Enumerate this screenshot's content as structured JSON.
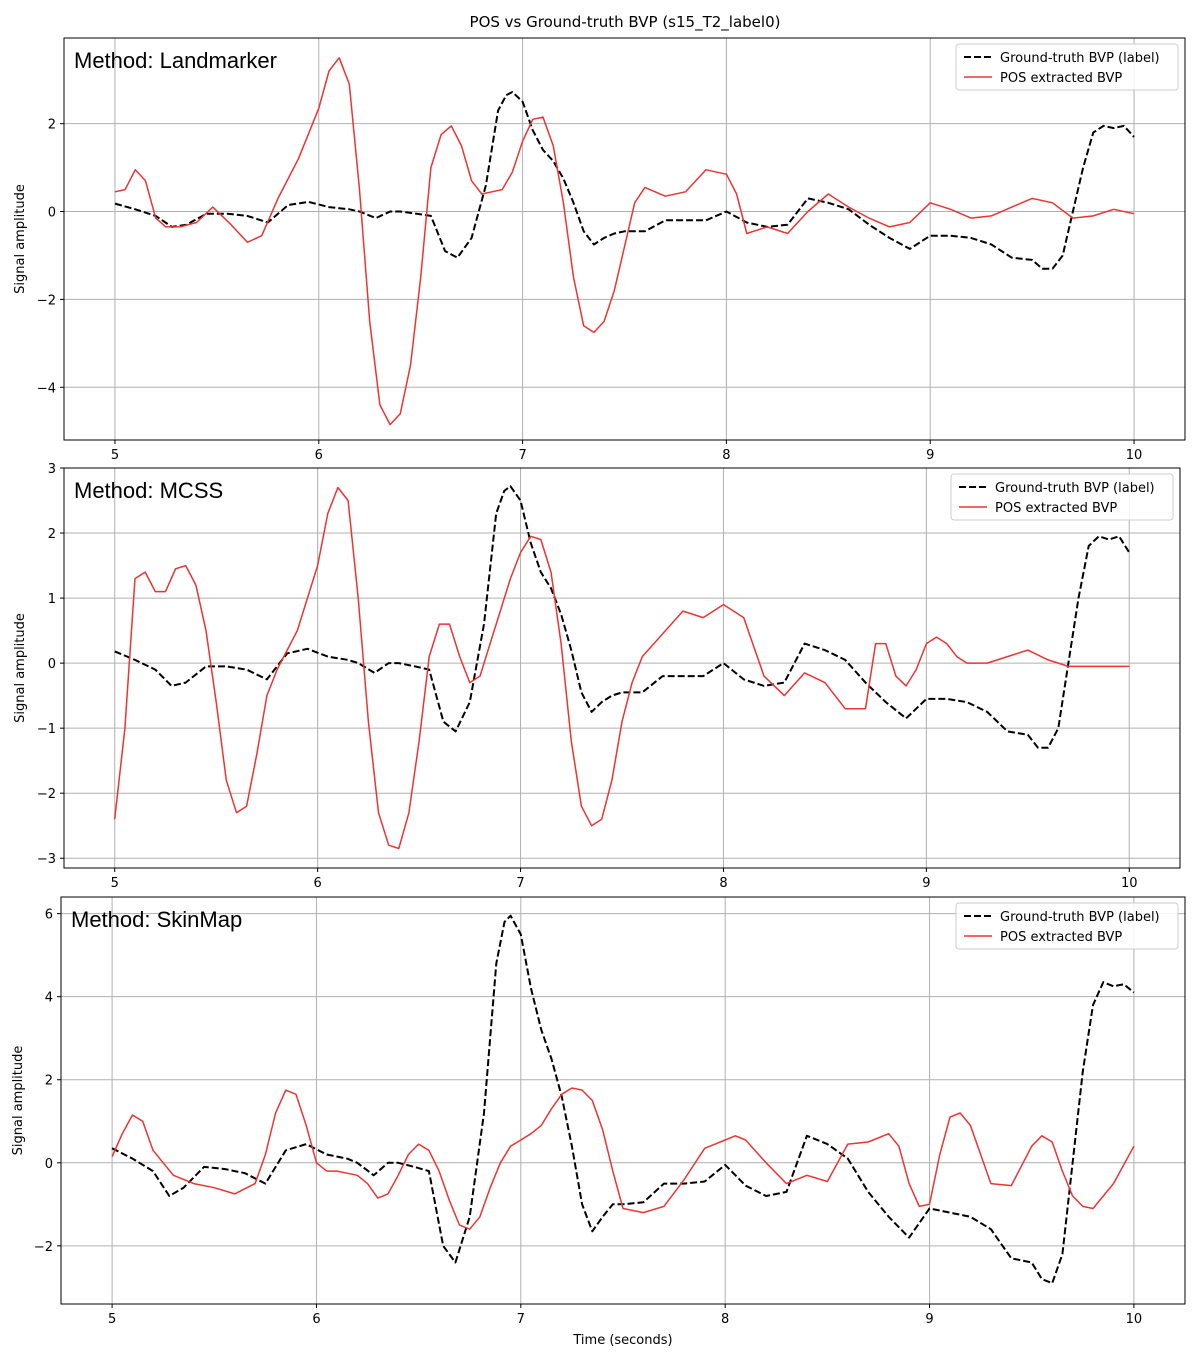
{
  "figure": {
    "title": "POS vs Ground-truth BVP (s15_T2_label0)"
  },
  "legend": {
    "gt_label": "Ground-truth BVP (label)",
    "pos_label": "POS extracted BVP",
    "gt_color": "#000000",
    "pos_color": "#ee3333"
  },
  "chart_data": [
    {
      "type": "line",
      "panel_label": "Method: Landmarker",
      "xlabel": "",
      "ylabel": "Signal amplitude",
      "xlim": [
        4.75,
        10.25
      ],
      "ylim": [
        -5.2,
        3.95
      ],
      "xticks": [
        5,
        6,
        7,
        8,
        9,
        10
      ],
      "yticks": [
        -4,
        -2,
        0,
        2
      ],
      "grid": true,
      "legend_position": "top-right",
      "series": [
        {
          "name": "Ground-truth BVP (label)",
          "style": "dashed",
          "x": [
            5.0,
            5.1,
            5.2,
            5.28,
            5.35,
            5.45,
            5.55,
            5.65,
            5.75,
            5.85,
            5.95,
            6.05,
            6.15,
            6.2,
            6.28,
            6.35,
            6.4,
            6.48,
            6.55,
            6.62,
            6.68,
            6.75,
            6.82,
            6.88,
            6.92,
            6.95,
            7.0,
            7.05,
            7.1,
            7.15,
            7.2,
            7.25,
            7.3,
            7.35,
            7.4,
            7.45,
            7.5,
            7.6,
            7.7,
            7.8,
            7.9,
            8.0,
            8.1,
            8.2,
            8.3,
            8.4,
            8.5,
            8.6,
            8.7,
            8.8,
            8.9,
            9.0,
            9.1,
            9.2,
            9.3,
            9.4,
            9.5,
            9.55,
            9.6,
            9.65,
            9.7,
            9.75,
            9.8,
            9.85,
            9.9,
            9.95,
            10.0
          ],
          "y": [
            0.18,
            0.05,
            -0.1,
            -0.35,
            -0.3,
            -0.05,
            -0.05,
            -0.1,
            -0.25,
            0.15,
            0.22,
            0.1,
            0.05,
            0.0,
            -0.15,
            0.0,
            0.0,
            -0.05,
            -0.1,
            -0.9,
            -1.05,
            -0.6,
            0.6,
            2.3,
            2.65,
            2.72,
            2.5,
            1.85,
            1.4,
            1.15,
            0.75,
            0.2,
            -0.45,
            -0.75,
            -0.6,
            -0.5,
            -0.45,
            -0.45,
            -0.2,
            -0.2,
            -0.2,
            0.0,
            -0.25,
            -0.35,
            -0.3,
            0.3,
            0.2,
            0.05,
            -0.3,
            -0.6,
            -0.85,
            -0.55,
            -0.55,
            -0.6,
            -0.75,
            -1.05,
            -1.1,
            -1.3,
            -1.3,
            -1.0,
            0.0,
            1.0,
            1.8,
            1.95,
            1.9,
            1.95,
            1.7
          ]
        },
        {
          "name": "POS extracted BVP",
          "style": "solid",
          "x": [
            5.0,
            5.05,
            5.1,
            5.15,
            5.2,
            5.25,
            5.32,
            5.4,
            5.48,
            5.57,
            5.65,
            5.72,
            5.8,
            5.9,
            6.0,
            6.05,
            6.1,
            6.15,
            6.2,
            6.25,
            6.3,
            6.35,
            6.4,
            6.45,
            6.5,
            6.55,
            6.6,
            6.65,
            6.7,
            6.75,
            6.8,
            6.85,
            6.9,
            6.95,
            7.0,
            7.05,
            7.1,
            7.15,
            7.2,
            7.25,
            7.3,
            7.35,
            7.4,
            7.45,
            7.5,
            7.55,
            7.6,
            7.7,
            7.8,
            7.9,
            8.0,
            8.05,
            8.1,
            8.2,
            8.3,
            8.4,
            8.5,
            8.6,
            8.7,
            8.8,
            8.9,
            9.0,
            9.1,
            9.2,
            9.3,
            9.4,
            9.5,
            9.6,
            9.7,
            9.8,
            9.9,
            10.0
          ],
          "y": [
            0.45,
            0.5,
            0.95,
            0.7,
            -0.15,
            -0.35,
            -0.35,
            -0.25,
            0.1,
            -0.3,
            -0.7,
            -0.55,
            0.3,
            1.2,
            2.35,
            3.2,
            3.5,
            2.9,
            0.5,
            -2.5,
            -4.4,
            -4.85,
            -4.6,
            -3.5,
            -1.5,
            1.0,
            1.75,
            1.95,
            1.5,
            0.7,
            0.4,
            0.45,
            0.5,
            0.9,
            1.6,
            2.1,
            2.15,
            1.5,
            0.2,
            -1.5,
            -2.6,
            -2.75,
            -2.5,
            -1.8,
            -0.8,
            0.2,
            0.55,
            0.35,
            0.45,
            0.95,
            0.85,
            0.4,
            -0.5,
            -0.35,
            -0.5,
            0.0,
            0.4,
            0.1,
            -0.15,
            -0.35,
            -0.25,
            0.2,
            0.05,
            -0.15,
            -0.1,
            0.1,
            0.3,
            0.2,
            -0.15,
            -0.1,
            0.05,
            -0.05
          ]
        }
      ]
    },
    {
      "type": "line",
      "panel_label": "Method: MCSS",
      "xlabel": "",
      "ylabel": "Signal amplitude",
      "xlim": [
        4.75,
        10.25
      ],
      "ylim": [
        -3.15,
        3.0
      ],
      "xticks": [
        5,
        6,
        7,
        8,
        9,
        10
      ],
      "yticks": [
        -3,
        -2,
        -1,
        0,
        1,
        2,
        3
      ],
      "grid": true,
      "legend_position": "top-right",
      "series": [
        {
          "name": "Ground-truth BVP (label)",
          "style": "dashed",
          "x": [
            5.0,
            5.1,
            5.2,
            5.28,
            5.35,
            5.45,
            5.55,
            5.65,
            5.75,
            5.85,
            5.95,
            6.05,
            6.15,
            6.2,
            6.28,
            6.35,
            6.4,
            6.48,
            6.55,
            6.62,
            6.68,
            6.75,
            6.82,
            6.88,
            6.92,
            6.95,
            7.0,
            7.05,
            7.1,
            7.15,
            7.2,
            7.25,
            7.3,
            7.35,
            7.4,
            7.45,
            7.5,
            7.6,
            7.7,
            7.8,
            7.9,
            8.0,
            8.1,
            8.2,
            8.3,
            8.4,
            8.5,
            8.6,
            8.7,
            8.8,
            8.9,
            9.0,
            9.1,
            9.2,
            9.3,
            9.4,
            9.5,
            9.55,
            9.6,
            9.65,
            9.7,
            9.75,
            9.8,
            9.85,
            9.9,
            9.95,
            10.0
          ],
          "y": [
            0.18,
            0.05,
            -0.1,
            -0.35,
            -0.3,
            -0.05,
            -0.05,
            -0.1,
            -0.25,
            0.15,
            0.22,
            0.1,
            0.05,
            0.0,
            -0.15,
            0.0,
            0.0,
            -0.05,
            -0.1,
            -0.9,
            -1.05,
            -0.6,
            0.6,
            2.3,
            2.65,
            2.72,
            2.5,
            1.85,
            1.4,
            1.15,
            0.75,
            0.2,
            -0.45,
            -0.75,
            -0.6,
            -0.5,
            -0.45,
            -0.45,
            -0.2,
            -0.2,
            -0.2,
            0.0,
            -0.25,
            -0.35,
            -0.3,
            0.3,
            0.2,
            0.05,
            -0.3,
            -0.6,
            -0.85,
            -0.55,
            -0.55,
            -0.6,
            -0.75,
            -1.05,
            -1.1,
            -1.3,
            -1.3,
            -1.0,
            0.0,
            1.0,
            1.8,
            1.95,
            1.9,
            1.95,
            1.7
          ]
        },
        {
          "name": "POS extracted BVP",
          "style": "solid",
          "x": [
            5.0,
            5.05,
            5.1,
            5.15,
            5.2,
            5.25,
            5.3,
            5.35,
            5.4,
            5.45,
            5.5,
            5.55,
            5.6,
            5.65,
            5.7,
            5.75,
            5.8,
            5.85,
            5.9,
            6.0,
            6.05,
            6.1,
            6.15,
            6.2,
            6.25,
            6.3,
            6.35,
            6.4,
            6.45,
            6.5,
            6.55,
            6.6,
            6.65,
            6.7,
            6.75,
            6.8,
            6.85,
            6.9,
            6.95,
            7.0,
            7.05,
            7.1,
            7.15,
            7.2,
            7.25,
            7.3,
            7.35,
            7.4,
            7.45,
            7.5,
            7.55,
            7.6,
            7.7,
            7.8,
            7.9,
            8.0,
            8.1,
            8.2,
            8.3,
            8.4,
            8.5,
            8.6,
            8.7,
            8.75,
            8.8,
            8.85,
            8.9,
            8.95,
            9.0,
            9.05,
            9.1,
            9.15,
            9.2,
            9.3,
            9.4,
            9.5,
            9.6,
            9.7,
            9.8,
            9.9,
            10.0
          ],
          "y": [
            -2.4,
            -1.0,
            1.3,
            1.4,
            1.1,
            1.1,
            1.45,
            1.5,
            1.2,
            0.5,
            -0.6,
            -1.8,
            -2.3,
            -2.2,
            -1.4,
            -0.5,
            -0.1,
            0.2,
            0.5,
            1.5,
            2.3,
            2.7,
            2.5,
            1.0,
            -0.9,
            -2.3,
            -2.8,
            -2.85,
            -2.3,
            -1.2,
            0.1,
            0.6,
            0.6,
            0.1,
            -0.3,
            -0.2,
            0.3,
            0.8,
            1.3,
            1.7,
            1.95,
            1.9,
            1.4,
            0.3,
            -1.2,
            -2.2,
            -2.5,
            -2.4,
            -1.8,
            -0.9,
            -0.3,
            0.1,
            0.45,
            0.8,
            0.7,
            0.9,
            0.7,
            -0.2,
            -0.5,
            -0.15,
            -0.3,
            -0.7,
            -0.7,
            0.3,
            0.3,
            -0.2,
            -0.35,
            -0.1,
            0.3,
            0.4,
            0.3,
            0.1,
            0.0,
            0.0,
            0.1,
            0.2,
            0.05,
            -0.05,
            -0.05,
            -0.05,
            -0.05
          ]
        }
      ]
    },
    {
      "type": "line",
      "panel_label": "Method: SkinMap",
      "xlabel": "Time (seconds)",
      "ylabel": "Signal amplitude",
      "xlim": [
        4.75,
        10.25
      ],
      "ylim": [
        -3.4,
        6.4
      ],
      "xticks": [
        5,
        6,
        7,
        8,
        9,
        10
      ],
      "yticks": [
        -2,
        0,
        2,
        4,
        6
      ],
      "grid": true,
      "legend_position": "top-right",
      "series": [
        {
          "name": "Ground-truth BVP (label)",
          "style": "dashed",
          "x": [
            5.0,
            5.1,
            5.2,
            5.28,
            5.35,
            5.45,
            5.55,
            5.65,
            5.75,
            5.85,
            5.95,
            6.05,
            6.15,
            6.2,
            6.28,
            6.35,
            6.4,
            6.48,
            6.55,
            6.62,
            6.68,
            6.75,
            6.82,
            6.88,
            6.92,
            6.95,
            7.0,
            7.05,
            7.1,
            7.15,
            7.2,
            7.25,
            7.3,
            7.35,
            7.4,
            7.45,
            7.5,
            7.6,
            7.7,
            7.8,
            7.9,
            8.0,
            8.1,
            8.2,
            8.3,
            8.4,
            8.5,
            8.6,
            8.7,
            8.8,
            8.9,
            9.0,
            9.1,
            9.2,
            9.3,
            9.4,
            9.5,
            9.55,
            9.6,
            9.65,
            9.7,
            9.75,
            9.8,
            9.85,
            9.9,
            9.95,
            10.0
          ],
          "y": [
            0.35,
            0.1,
            -0.2,
            -0.8,
            -0.6,
            -0.1,
            -0.15,
            -0.25,
            -0.5,
            0.3,
            0.45,
            0.2,
            0.1,
            0.0,
            -0.3,
            0.0,
            0.0,
            -0.1,
            -0.2,
            -2.0,
            -2.4,
            -1.3,
            1.2,
            4.8,
            5.8,
            5.95,
            5.5,
            4.2,
            3.2,
            2.5,
            1.6,
            0.4,
            -1.0,
            -1.65,
            -1.3,
            -1.0,
            -1.0,
            -0.95,
            -0.5,
            -0.5,
            -0.45,
            -0.05,
            -0.55,
            -0.8,
            -0.7,
            0.65,
            0.45,
            0.1,
            -0.7,
            -1.3,
            -1.8,
            -1.1,
            -1.2,
            -1.3,
            -1.6,
            -2.3,
            -2.4,
            -2.8,
            -2.9,
            -2.2,
            0.0,
            2.2,
            3.8,
            4.35,
            4.25,
            4.3,
            4.1
          ]
        },
        {
          "name": "POS extracted BVP",
          "style": "solid",
          "x": [
            5.0,
            5.05,
            5.1,
            5.15,
            5.2,
            5.3,
            5.4,
            5.5,
            5.6,
            5.7,
            5.75,
            5.8,
            5.85,
            5.9,
            5.95,
            6.0,
            6.05,
            6.1,
            6.15,
            6.2,
            6.25,
            6.3,
            6.35,
            6.4,
            6.45,
            6.5,
            6.55,
            6.6,
            6.65,
            6.7,
            6.75,
            6.8,
            6.85,
            6.9,
            6.95,
            7.0,
            7.05,
            7.1,
            7.15,
            7.2,
            7.25,
            7.3,
            7.35,
            7.4,
            7.45,
            7.5,
            7.6,
            7.7,
            7.8,
            7.9,
            8.0,
            8.05,
            8.1,
            8.2,
            8.3,
            8.4,
            8.5,
            8.6,
            8.7,
            8.8,
            8.85,
            8.9,
            8.95,
            9.0,
            9.05,
            9.1,
            9.15,
            9.2,
            9.3,
            9.4,
            9.5,
            9.55,
            9.6,
            9.65,
            9.7,
            9.75,
            9.8,
            9.9,
            10.0
          ],
          "y": [
            0.15,
            0.7,
            1.15,
            1.0,
            0.3,
            -0.3,
            -0.5,
            -0.6,
            -0.75,
            -0.5,
            0.2,
            1.2,
            1.75,
            1.65,
            0.9,
            0.0,
            -0.2,
            -0.2,
            -0.25,
            -0.3,
            -0.5,
            -0.85,
            -0.75,
            -0.3,
            0.2,
            0.45,
            0.3,
            -0.2,
            -0.9,
            -1.5,
            -1.6,
            -1.3,
            -0.6,
            0.0,
            0.4,
            0.55,
            0.7,
            0.9,
            1.3,
            1.65,
            1.8,
            1.75,
            1.5,
            0.8,
            -0.2,
            -1.1,
            -1.2,
            -1.05,
            -0.4,
            0.35,
            0.55,
            0.65,
            0.55,
            0.0,
            -0.5,
            -0.3,
            -0.45,
            0.45,
            0.5,
            0.7,
            0.4,
            -0.5,
            -1.05,
            -1.0,
            0.2,
            1.1,
            1.2,
            0.9,
            -0.5,
            -0.55,
            0.4,
            0.65,
            0.5,
            -0.2,
            -0.8,
            -1.05,
            -1.1,
            -0.5,
            0.4
          ]
        }
      ]
    }
  ]
}
